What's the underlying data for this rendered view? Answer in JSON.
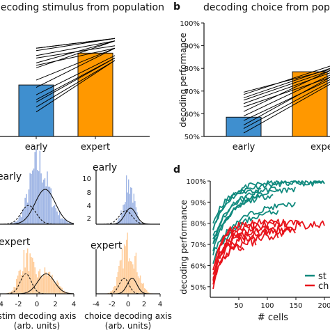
{
  "panel_a_title": "decoding stimulus from population",
  "panel_b_label": "b",
  "panel_b_title": "decoding choice from population",
  "panel_d_label": "d",
  "colors": {
    "blue": "#3f8fcf",
    "orange": "#ff9800",
    "teal": "#118a7e",
    "red": "#e8141c"
  },
  "chart_data": [
    {
      "id": "a",
      "type": "bar",
      "categories": [
        "early",
        "expert"
      ],
      "values": [
        0.71,
        0.84
      ],
      "paired_lines": [
        [
          0.86,
          0.9
        ],
        [
          0.86,
          0.9
        ],
        [
          0.85,
          0.9
        ],
        [
          0.83,
          0.89
        ],
        [
          0.82,
          0.87
        ],
        [
          0.8,
          0.89
        ],
        [
          0.79,
          0.86
        ],
        [
          0.78,
          0.89
        ],
        [
          0.73,
          0.86
        ],
        [
          0.7,
          0.86
        ],
        [
          0.67,
          0.83
        ],
        [
          0.65,
          0.82
        ],
        [
          0.64,
          0.82
        ],
        [
          0.62,
          0.81
        ],
        [
          0.6,
          0.81
        ]
      ],
      "ylim": [
        0.5,
        1.0
      ]
    },
    {
      "id": "b",
      "type": "bar",
      "categories": [
        "early",
        "expert"
      ],
      "category_labels": [
        "early",
        "expe"
      ],
      "values": [
        0.585,
        0.785
      ],
      "paired_lines": [
        [
          0.695,
          0.795
        ],
        [
          0.685,
          0.81
        ],
        [
          0.67,
          0.8
        ],
        [
          0.66,
          0.79
        ],
        [
          0.645,
          0.78
        ],
        [
          0.63,
          0.76
        ],
        [
          0.61,
          0.79
        ],
        [
          0.59,
          0.77
        ],
        [
          0.57,
          0.75
        ],
        [
          0.55,
          0.76
        ],
        [
          0.535,
          0.74
        ],
        [
          0.515,
          0.73
        ]
      ],
      "ylabel": "decoding performance",
      "yticks": [
        "100%",
        "90%",
        "80%",
        "70%",
        "60%",
        "50%"
      ],
      "ylim": [
        0.5,
        1.0
      ]
    },
    {
      "id": "c",
      "type": "histogram",
      "panels": [
        {
          "label": "early",
          "series": "stim"
        },
        {
          "label": "early",
          "series": "choice"
        },
        {
          "label": "expert",
          "series": "stim"
        },
        {
          "label": "expert",
          "series": "choice"
        }
      ],
      "right_yticks": [
        "10",
        "8",
        "6",
        "4",
        "2"
      ],
      "xticks": [
        "-4",
        "-2",
        "0",
        "2",
        "4"
      ],
      "xlabels": [
        {
          "main": "stim decoding axis",
          "sub": "(arb. units)"
        },
        {
          "main": "choice decoding axis",
          "sub": "(arb. units)"
        }
      ],
      "xlim": [
        -4,
        4
      ]
    },
    {
      "id": "d",
      "type": "line",
      "xlabel": "# cells",
      "ylabel": "decoding performance",
      "xticks": [
        "50",
        "100",
        "150",
        "200"
      ],
      "yticks": [
        "100%",
        "90%",
        "80%",
        "70%",
        "60%",
        "50%"
      ],
      "xlim": [
        0,
        200
      ],
      "ylim": [
        0.45,
        1.0
      ],
      "legend": [
        "st",
        "ch"
      ],
      "legend_position": "bottom-right",
      "series": [
        {
          "group": "stim",
          "end": 200,
          "start": 0.78,
          "plateau": 0.99,
          "rate": 30
        },
        {
          "group": "stim",
          "end": 200,
          "start": 0.76,
          "plateau": 0.995,
          "rate": 25
        },
        {
          "group": "stim",
          "end": 150,
          "start": 0.7,
          "plateau": 0.97,
          "rate": 40
        },
        {
          "group": "stim",
          "end": 120,
          "start": 0.73,
          "plateau": 0.975,
          "rate": 35
        },
        {
          "group": "stim",
          "end": 110,
          "start": 0.72,
          "plateau": 0.95,
          "rate": 40
        },
        {
          "group": "stim",
          "end": 90,
          "start": 0.8,
          "plateau": 0.96,
          "rate": 20
        },
        {
          "group": "stim",
          "end": 90,
          "start": 0.68,
          "plateau": 0.96,
          "rate": 35
        },
        {
          "group": "stim",
          "end": 70,
          "start": 0.7,
          "plateau": 0.945,
          "rate": 25
        },
        {
          "group": "stim",
          "end": 150,
          "start": 0.66,
          "plateau": 0.9,
          "rate": 45
        },
        {
          "group": "stim",
          "end": 120,
          "start": 0.62,
          "plateau": 0.87,
          "rate": 40
        },
        {
          "group": "choice",
          "end": 200,
          "start": 0.56,
          "plateau": 0.79,
          "rate": 15
        },
        {
          "group": "choice",
          "end": 160,
          "start": 0.58,
          "plateau": 0.8,
          "rate": 15
        },
        {
          "group": "choice",
          "end": 140,
          "start": 0.55,
          "plateau": 0.77,
          "rate": 20
        },
        {
          "group": "choice",
          "end": 150,
          "start": 0.54,
          "plateau": 0.76,
          "rate": 18
        },
        {
          "group": "choice",
          "end": 120,
          "start": 0.53,
          "plateau": 0.74,
          "rate": 20
        },
        {
          "group": "choice",
          "end": 100,
          "start": 0.52,
          "plateau": 0.75,
          "rate": 15
        },
        {
          "group": "choice",
          "end": 80,
          "start": 0.51,
          "plateau": 0.72,
          "rate": 20
        },
        {
          "group": "choice",
          "end": 60,
          "start": 0.5,
          "plateau": 0.7,
          "rate": 15
        }
      ]
    }
  ]
}
